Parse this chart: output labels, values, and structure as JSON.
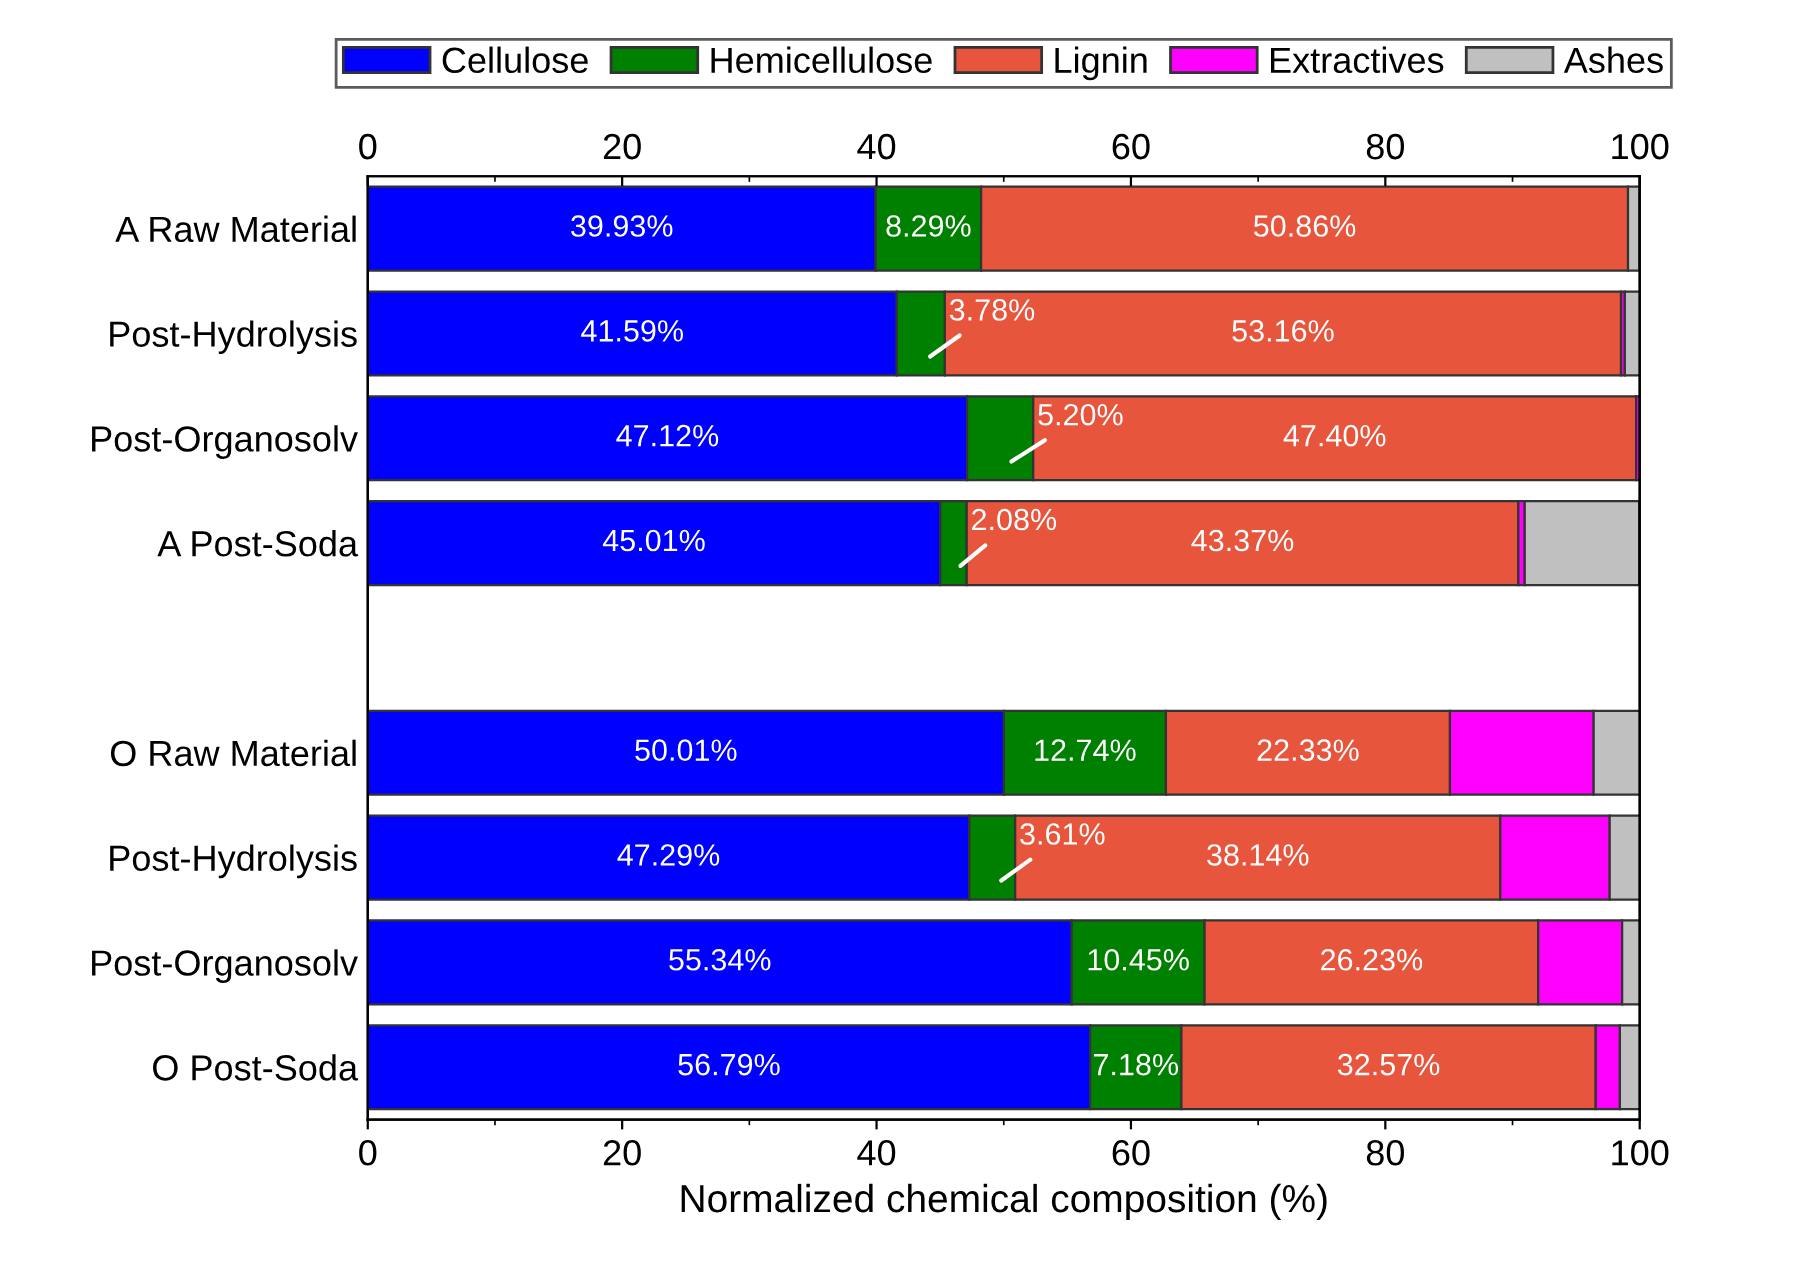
{
  "chart_data": {
    "type": "bar",
    "orientation": "horizontal",
    "stacked": true,
    "xlabel": "Normalized chemical composition (%)",
    "categories": [
      "A Raw Material",
      "Post-Hydrolysis",
      "Post-Organosolv",
      "A Post-Soda",
      null,
      "O Raw Material",
      "Post-Hydrolysis",
      "Post-Organosolv",
      "O Post-Soda"
    ],
    "series": [
      {
        "name": "Cellulose",
        "color": "#0000ff",
        "values": [
          39.93,
          41.59,
          47.12,
          45.01,
          null,
          50.01,
          47.29,
          55.34,
          56.79
        ],
        "value_labels": [
          "39.93%",
          "41.59%",
          "47.12%",
          "45.01%",
          null,
          "50.01%",
          "47.29%",
          "55.34%",
          "56.79%"
        ]
      },
      {
        "name": "Hemicellulose",
        "color": "#008000",
        "values": [
          8.29,
          3.78,
          5.2,
          2.08,
          null,
          12.74,
          3.61,
          10.45,
          7.18
        ],
        "value_labels": [
          "8.29%",
          "3.78%",
          "5.20%",
          "2.08%",
          null,
          "12.74%",
          "3.61%",
          "10.45%",
          "7.18%"
        ]
      },
      {
        "name": "Lignin",
        "color": "#e8553d",
        "values": [
          50.86,
          53.16,
          47.4,
          43.37,
          null,
          22.33,
          38.14,
          26.23,
          32.57
        ],
        "value_labels": [
          "50.86%",
          "53.16%",
          "47.40%",
          "43.37%",
          null,
          "22.33%",
          "38.14%",
          "26.23%",
          "32.57%"
        ]
      },
      {
        "name": "Extractives",
        "color": "#ff00ff",
        "values": [
          null,
          0.3,
          0.3,
          0.5,
          null,
          11.3,
          8.6,
          6.6,
          1.9
        ]
      },
      {
        "name": "Ashes",
        "color": "#c0c0c0",
        "values": [
          0.9,
          1.2,
          null,
          9.0,
          null,
          3.7,
          2.4,
          1.4,
          1.6
        ]
      }
    ],
    "xlim": [
      0,
      100
    ],
    "xticks": [
      0,
      20,
      40,
      60,
      80,
      100
    ],
    "x2lim": [
      0,
      100
    ],
    "x2ticks": [
      0,
      20,
      40,
      60,
      80,
      100
    ],
    "grid": false,
    "legend": "top"
  }
}
